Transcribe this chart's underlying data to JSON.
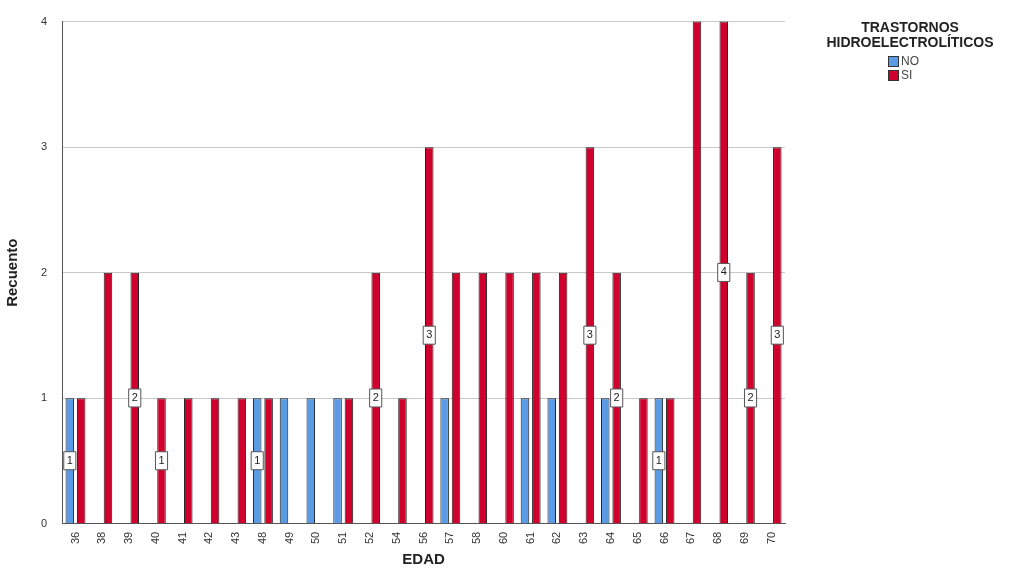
{
  "chart_data": {
    "type": "bar",
    "xlabel": "EDAD",
    "ylabel": "Recuento",
    "legend_title": "TRASTORNOS HIDROELECTROLÍTICOS",
    "legend": "top right",
    "grid": "y",
    "categories": [
      "36",
      "38",
      "39",
      "40",
      "41",
      "42",
      "43",
      "48",
      "49",
      "50",
      "51",
      "52",
      "54",
      "56",
      "57",
      "58",
      "60",
      "61",
      "62",
      "63",
      "64",
      "65",
      "66",
      "67",
      "68",
      "69",
      "70"
    ],
    "ylim": [
      0,
      4
    ],
    "yticks": [
      0,
      1,
      2,
      3,
      4
    ],
    "series": [
      {
        "name": "NO",
        "color": "#5b9be6",
        "values": [
          1,
          null,
          null,
          null,
          null,
          null,
          null,
          1,
          1,
          1,
          1,
          null,
          null,
          null,
          1,
          null,
          null,
          1,
          1,
          null,
          1,
          null,
          1,
          null,
          null,
          null,
          null
        ],
        "value_labels": [
          "1",
          null,
          null,
          null,
          null,
          null,
          null,
          "1",
          null,
          null,
          null,
          null,
          null,
          null,
          null,
          null,
          null,
          null,
          null,
          null,
          null,
          null,
          "1",
          null,
          null,
          null,
          null
        ]
      },
      {
        "name": "SI",
        "color": "#d0002c",
        "values": [
          1,
          2,
          2,
          1,
          1,
          1,
          1,
          1,
          null,
          null,
          1,
          2,
          1,
          3,
          2,
          2,
          2,
          2,
          2,
          3,
          2,
          1,
          1,
          4,
          4,
          2,
          3
        ],
        "value_labels": [
          null,
          null,
          "2",
          "1",
          null,
          null,
          null,
          null,
          null,
          null,
          null,
          "2",
          null,
          "3",
          null,
          null,
          null,
          null,
          null,
          "3",
          "2",
          null,
          null,
          null,
          "4",
          "2",
          "3"
        ]
      }
    ]
  }
}
